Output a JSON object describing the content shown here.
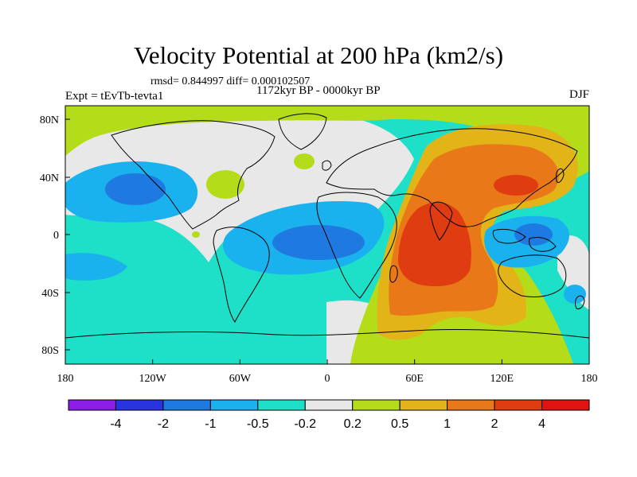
{
  "title": "Velocity Potential at 200 hPa (km2/s)",
  "stats_text": "rmsd= 0.844997 diff= 0.000102507",
  "period_text": "1172kyr BP - 0000kyr BP",
  "experiment_text": "Expt = tEvTb-tevta1",
  "season_text": "DJF",
  "x_ticks": [
    "180",
    "120W",
    "60W",
    "0",
    "60E",
    "120E",
    "180"
  ],
  "y_ticks": [
    "80N",
    "40N",
    "0",
    "40S",
    "80S"
  ],
  "colorbar": {
    "colors": [
      "#8a1ee6",
      "#2a33e0",
      "#1e7ae0",
      "#1ab2ee",
      "#1ee0c8",
      "#e8e8e8",
      "#b4dc18",
      "#e2b418",
      "#e87818",
      "#e03c12",
      "#e01212"
    ],
    "labels": [
      "-4",
      "-2",
      "-1",
      "-0.5",
      "-0.2",
      "0.2",
      "0.5",
      "1",
      "2",
      "4"
    ]
  }
}
